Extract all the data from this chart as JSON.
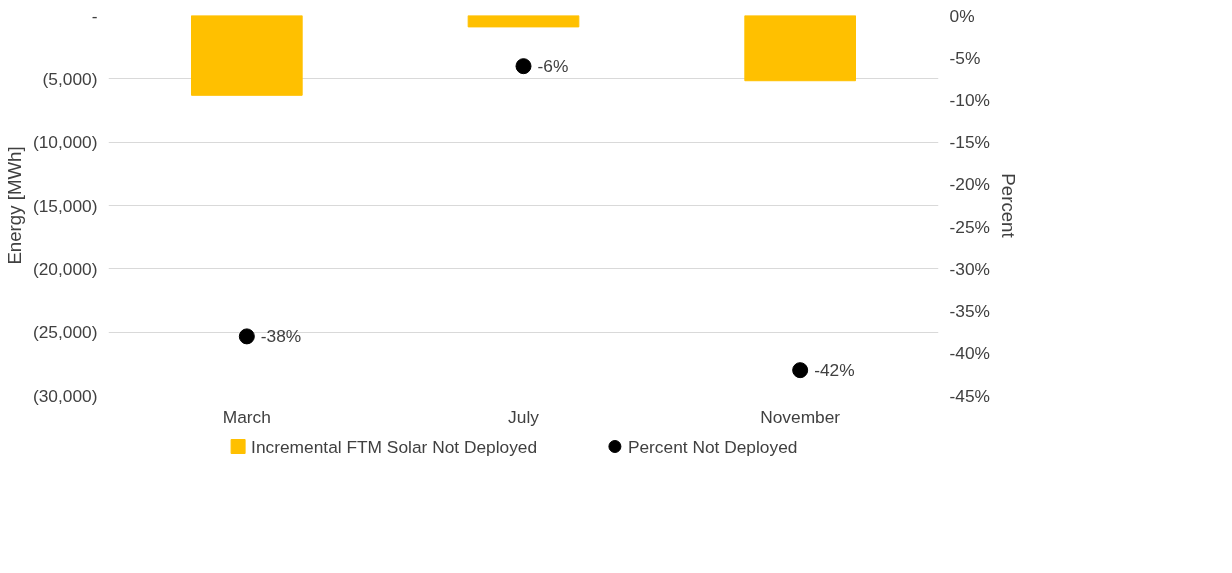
{
  "chart_data": {
    "type": "bar",
    "categories": [
      "March",
      "July",
      "November"
    ],
    "series": [
      {
        "name": "Incremental FTM Solar Not Deployed",
        "color": "#ffc000",
        "values": [
          -6300,
          -900,
          -5150
        ]
      },
      {
        "name": "Percent Not Deployed",
        "type": "scatter",
        "axis": "y2",
        "color": "#000000",
        "values": [
          -38,
          -6,
          -42
        ],
        "value_labels": [
          "-38%",
          "-6%",
          "-42%"
        ]
      }
    ],
    "ylabel": "Energy [MWh]",
    "y2label": "Percent",
    "ylim": [
      -30000,
      0
    ],
    "yticks": [
      {
        "value": 0,
        "label": "-"
      },
      {
        "value": -5000,
        "label": "(5,000)"
      },
      {
        "value": -10000,
        "label": "(10,000)"
      },
      {
        "value": -15000,
        "label": "(15,000)"
      },
      {
        "value": -20000,
        "label": "(20,000)"
      },
      {
        "value": -25000,
        "label": "(25,000)"
      },
      {
        "value": -30000,
        "label": "(30,000)"
      }
    ],
    "y2lim": [
      -45,
      0
    ],
    "y2ticks": [
      {
        "value": 0,
        "label": "0%"
      },
      {
        "value": -5,
        "label": "-5%"
      },
      {
        "value": -10,
        "label": "-10%"
      },
      {
        "value": -15,
        "label": "-15%"
      },
      {
        "value": -20,
        "label": "-20%"
      },
      {
        "value": -25,
        "label": "-25%"
      },
      {
        "value": -30,
        "label": "-30%"
      },
      {
        "value": -35,
        "label": "-35%"
      },
      {
        "value": -40,
        "label": "-40%"
      },
      {
        "value": -45,
        "label": "-45%"
      }
    ],
    "grid": "y",
    "legend": "bottom",
    "marker": "circle"
  }
}
